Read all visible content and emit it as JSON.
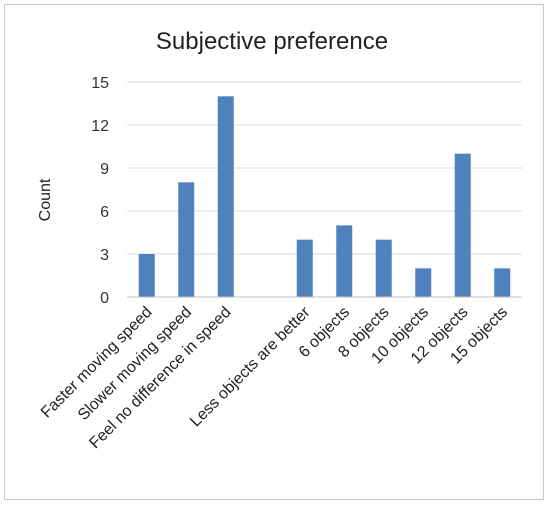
{
  "chart_data": {
    "type": "bar",
    "title": "Subjective preference",
    "xlabel": "",
    "ylabel": "Count",
    "ylim": [
      0,
      15
    ],
    "yticks": [
      0,
      3,
      6,
      9,
      12,
      15
    ],
    "grid": true,
    "legend": "none",
    "bar_color": "#4f81bd",
    "categories": [
      "Faster moving speed",
      "Slower moving speed",
      "Feel no difference in speed",
      "",
      "Less objects are better",
      "6 objects",
      "8 objects",
      "10 objects",
      "12 objects",
      "15 objects"
    ],
    "values": [
      3,
      8,
      14,
      null,
      4,
      5,
      4,
      2,
      10,
      2
    ]
  }
}
